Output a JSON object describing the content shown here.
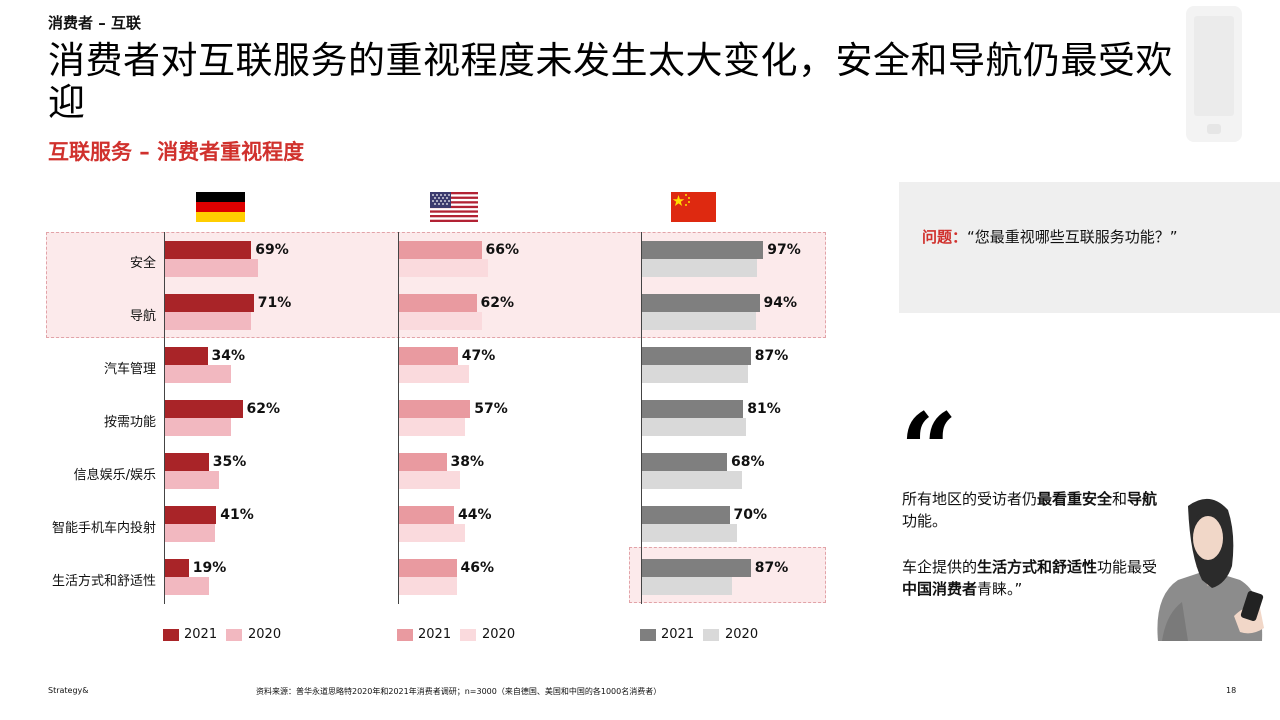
{
  "header": {
    "breadcrumb": "消费者 – 互联",
    "title": "消费者对互联服务的重视程度未发生太大变化，安全和导航仍最受欢迎",
    "subtitle": "互联服务 – 消费者重视程度"
  },
  "chart_data": {
    "type": "bar",
    "orientation": "horizontal",
    "categories": [
      "安全",
      "导航",
      "汽车管理",
      "按需功能",
      "信息娱乐/娱乐",
      "智能手机车内投射",
      "生活方式和舒适性"
    ],
    "panels": [
      {
        "flag": "germany-flag",
        "colors": {
          "2021": "#a92428",
          "2020": "#f2b8c0"
        },
        "series": [
          {
            "name": "2021",
            "values": [
              69,
              71,
              34,
              62,
              35,
              41,
              19
            ]
          },
          {
            "name": "2020",
            "values": [
              74,
              69,
              53,
              53,
              43,
              40,
              35
            ]
          }
        ]
      },
      {
        "flag": "usa-flag",
        "colors": {
          "2021": "#e99aa0",
          "2020": "#fadadd"
        },
        "series": [
          {
            "name": "2021",
            "values": [
              66,
              62,
              47,
              57,
              38,
              44,
              46
            ]
          },
          {
            "name": "2020",
            "values": [
              71,
              66,
              56,
              53,
              49,
              53,
              46
            ]
          }
        ]
      },
      {
        "flag": "china-flag",
        "colors": {
          "2021": "#7f7f7f",
          "2020": "#d9d9d9"
        },
        "series": [
          {
            "name": "2021",
            "values": [
              97,
              94,
              87,
              81,
              68,
              70,
              87
            ]
          },
          {
            "name": "2020",
            "values": [
              92,
              91,
              85,
              83,
              80,
              76,
              72
            ]
          }
        ]
      }
    ],
    "value_suffix": "%",
    "xlim": [
      0,
      100
    ],
    "legend": [
      "2021",
      "2020"
    ],
    "legend_position": "bottom"
  },
  "question": {
    "label": "问题：",
    "text": "“您最重视哪些互联服务功能？”"
  },
  "quote": {
    "p1_a": "所有地区的受访者仍",
    "p1_b": "最看重安全",
    "p1_c": "和",
    "p1_d": "导航",
    "p1_e": "功能。",
    "p2_a": "车企提供的",
    "p2_b": "生活方式和舒适性",
    "p2_c": "功能最受",
    "p2_d": "中国消费者",
    "p2_e": "青睐。”"
  },
  "footer": {
    "brand": "Strategy&",
    "source": "资料来源：普华永道思略特2020年和2021年消费者调研；n=3000（来自德国、美国和中国的各1000名消费者）",
    "page": "18"
  }
}
